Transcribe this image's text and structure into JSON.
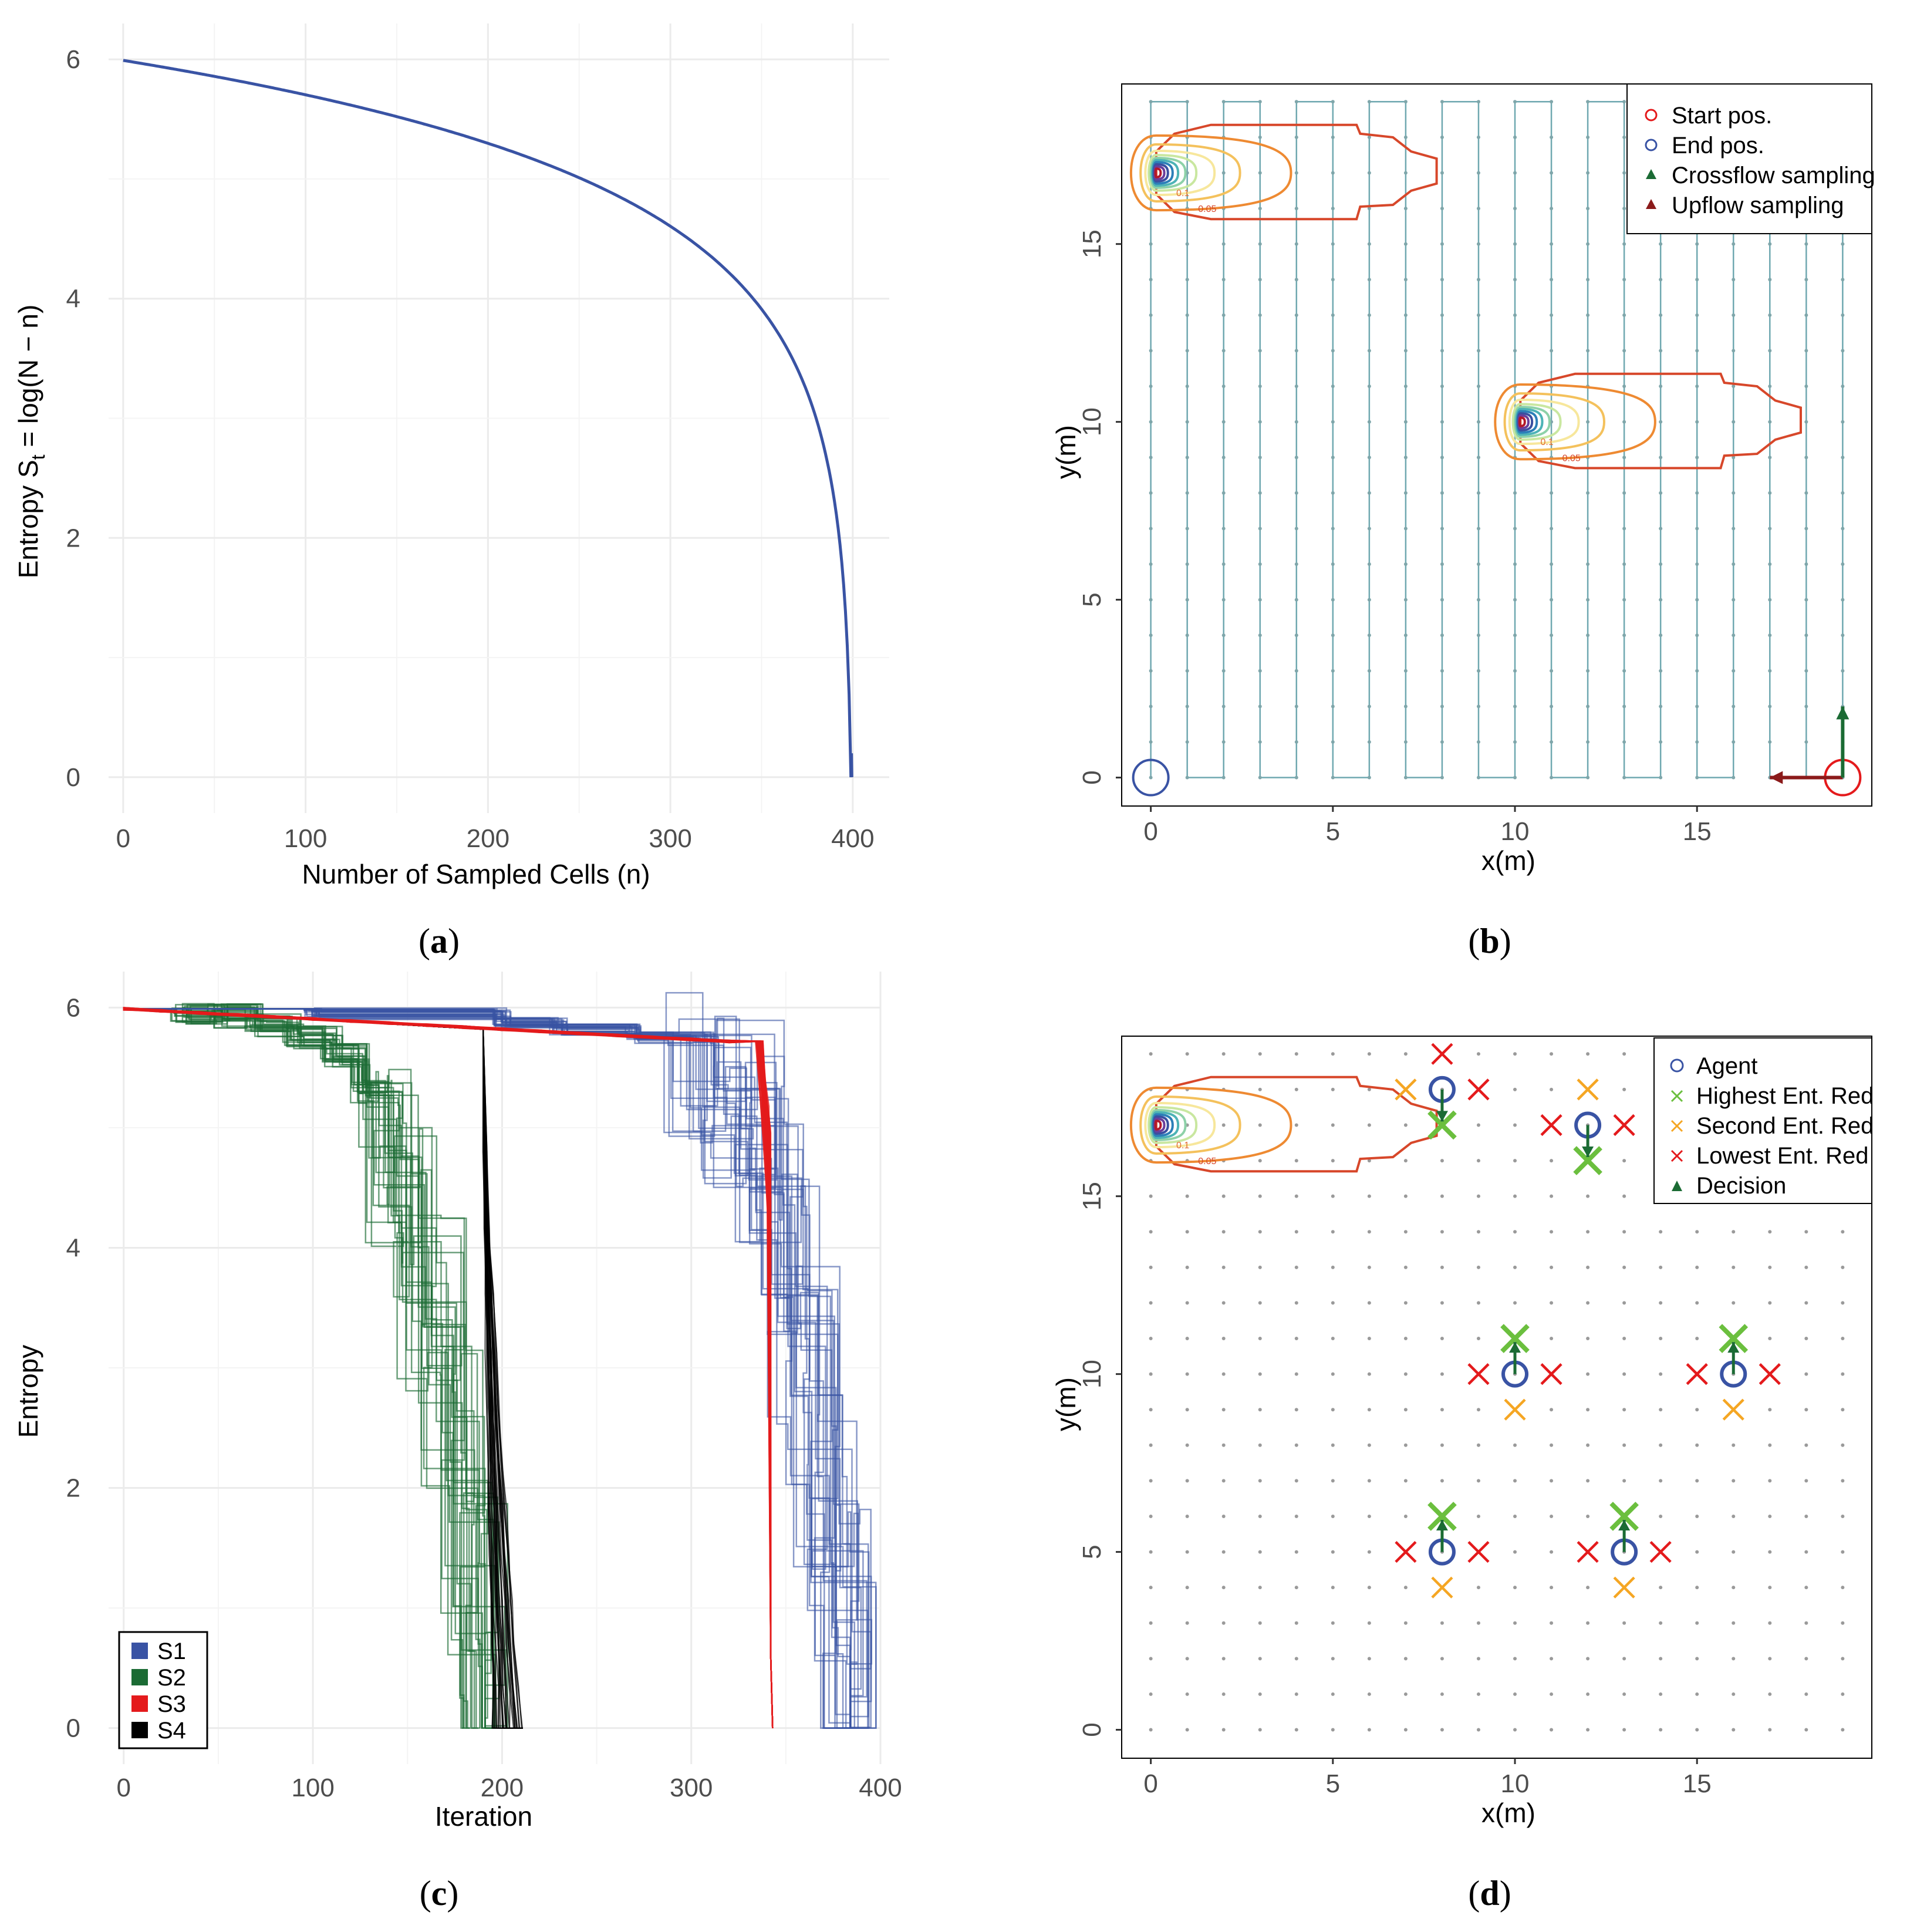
{
  "figure_labels": {
    "a": "a",
    "b": "b",
    "c": "c",
    "d": "d"
  },
  "chart_data": [
    {
      "id": "a",
      "type": "line",
      "title": "",
      "xlabel": "Number of Sampled Cells (n)",
      "ylabel_prefix": "Entropy S",
      "ylabel_sub": "t",
      "ylabel_suffix": " = log(N − n)",
      "N": 400,
      "xlim": [
        -8,
        420
      ],
      "ylim": [
        -0.3,
        6.3
      ],
      "xticks": [
        0,
        100,
        200,
        300,
        400
      ],
      "yticks": [
        0,
        2,
        4,
        6
      ],
      "line_color": "#3953a4",
      "formula": "log(400 - n)"
    },
    {
      "id": "b",
      "type": "line",
      "xlabel": "x(m)",
      "ylabel": "y(m)",
      "xlim": [
        -0.8,
        19.8
      ],
      "ylim": [
        -0.8,
        19.5
      ],
      "xticks": [
        0,
        5,
        10,
        15
      ],
      "yticks": [
        0,
        5,
        10,
        15
      ],
      "grid_size": 20,
      "path_color": "#6fa8b0",
      "start": [
        19,
        0
      ],
      "end": [
        0,
        0
      ],
      "plume_sources": [
        [
          0.3,
          17
        ],
        [
          10.3,
          10
        ]
      ],
      "contour_labels": [
        "0.1",
        "0.05"
      ],
      "legend": [
        {
          "label": "Start pos.",
          "symbol": "circle",
          "color": "#e41a1c"
        },
        {
          "label": "End pos.",
          "symbol": "circle",
          "color": "#3953a4"
        },
        {
          "label": "Crossflow sampling",
          "symbol": "triangle",
          "color": "#1b6b34"
        },
        {
          "label": "Upflow sampling",
          "symbol": "triangle",
          "color": "#8b1a1a"
        }
      ],
      "arrows": [
        {
          "name": "upflow",
          "from": [
            19,
            0
          ],
          "to": [
            17,
            0
          ],
          "color": "#8b1a1a"
        },
        {
          "name": "crossflow",
          "from": [
            19,
            0
          ],
          "to": [
            19,
            2
          ],
          "color": "#1b6b34"
        }
      ]
    },
    {
      "id": "c",
      "type": "line",
      "xlabel": "Iteration",
      "ylabel": "Entropy",
      "xlim": [
        -8,
        400
      ],
      "ylim": [
        -0.3,
        6.3
      ],
      "xticks": [
        0,
        100,
        200,
        300,
        400
      ],
      "xtick_labels": [
        "0",
        "100",
        "200",
        "300",
        "400"
      ],
      "yticks": [
        0,
        2,
        4,
        6
      ],
      "series": [
        {
          "name": "S1",
          "color": "#3953a4",
          "start_entropy": 5.99,
          "end_iteration": 384,
          "runs": 30
        },
        {
          "name": "S2",
          "color": "#1b6b34",
          "start_entropy": 5.99,
          "end_iteration": 191,
          "runs": 30
        },
        {
          "name": "S3",
          "color": "#e41a1c",
          "start_entropy": 5.99,
          "end_iteration": 343,
          "runs": 30
        },
        {
          "name": "S4",
          "color": "#000000",
          "start_entropy": 5.99,
          "end_iteration": 211,
          "runs": 30
        }
      ]
    },
    {
      "id": "d",
      "type": "scatter",
      "xlabel": "x(m)",
      "ylabel": "y(m)",
      "xlim": [
        -0.8,
        19.8
      ],
      "ylim": [
        -0.8,
        19.5
      ],
      "xticks": [
        0,
        5,
        10,
        15
      ],
      "yticks": [
        0,
        5,
        10,
        15
      ],
      "legend": [
        {
          "label": "Agent",
          "symbol": "circle",
          "color": "#3953a4"
        },
        {
          "label": "Highest Ent. Red",
          "symbol": "cross",
          "color": "#6bbf3e"
        },
        {
          "label": "Second Ent. Red",
          "symbol": "cross",
          "color": "#f5a623"
        },
        {
          "label": "Lowest Ent. Red",
          "symbol": "cross",
          "color": "#e41a1c"
        },
        {
          "label": "Decision",
          "symbol": "triangle",
          "color": "#1b6b34"
        }
      ],
      "plume_source": [
        0.3,
        17
      ],
      "agents": [
        {
          "pos": [
            8,
            18
          ],
          "highest": [
            8,
            17
          ],
          "second": [
            7,
            18
          ],
          "lowest": [
            [
              8,
              19
            ],
            [
              9,
              18
            ]
          ],
          "decision": "down"
        },
        {
          "pos": [
            12,
            17
          ],
          "highest": [
            12,
            16
          ],
          "second": [
            12,
            18
          ],
          "lowest": [
            [
              11,
              17
            ],
            [
              13,
              17
            ]
          ],
          "decision": "down"
        },
        {
          "pos": [
            10,
            10
          ],
          "highest": [
            10,
            11
          ],
          "second": [
            10,
            9
          ],
          "lowest": [
            [
              9,
              10
            ],
            [
              11,
              10
            ]
          ],
          "decision": "up"
        },
        {
          "pos": [
            16,
            10
          ],
          "highest": [
            16,
            11
          ],
          "second": [
            16,
            9
          ],
          "lowest": [
            [
              15,
              10
            ],
            [
              17,
              10
            ]
          ],
          "decision": "up"
        },
        {
          "pos": [
            8,
            5
          ],
          "highest": [
            8,
            6
          ],
          "second": [
            8,
            4
          ],
          "lowest": [
            [
              7,
              5
            ],
            [
              9,
              5
            ]
          ],
          "decision": "up"
        },
        {
          "pos": [
            13,
            5
          ],
          "highest": [
            13,
            6
          ],
          "second": [
            13,
            4
          ],
          "lowest": [
            [
              12,
              5
            ],
            [
              14,
              5
            ]
          ],
          "decision": "up"
        }
      ]
    }
  ]
}
